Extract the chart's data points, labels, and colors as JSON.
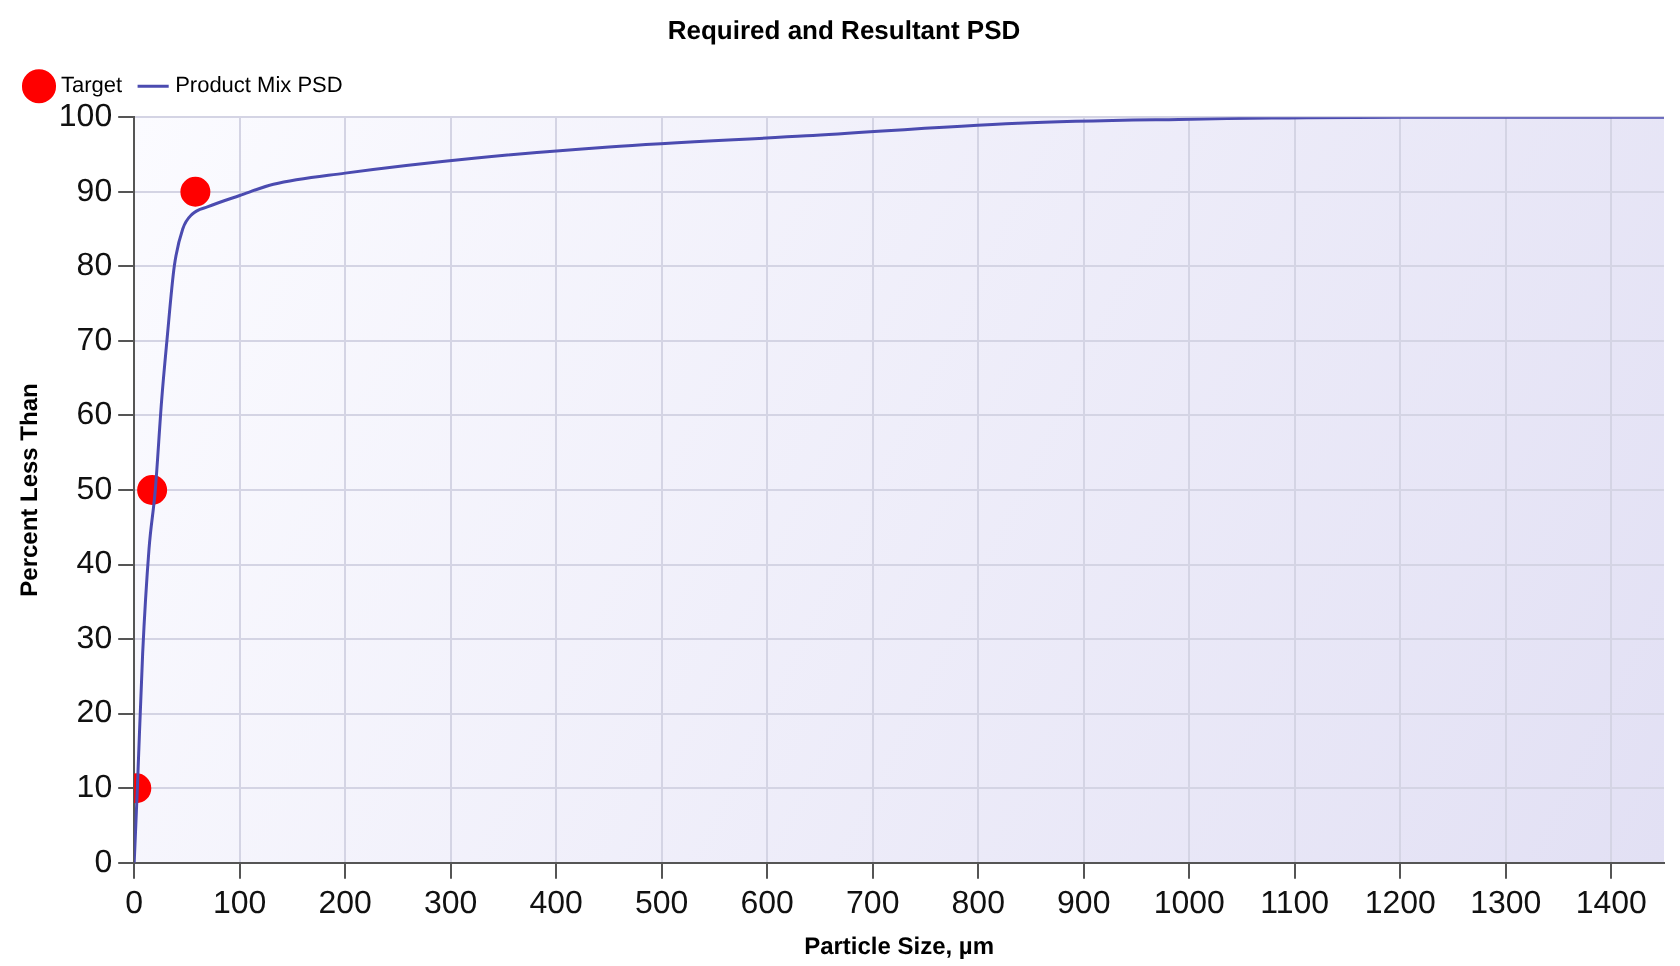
{
  "chart_data": {
    "type": "line",
    "title": "Required and Resultant PSD",
    "xlabel": "Particle Size, µm",
    "ylabel": "Percent Less Than",
    "series": [
      {
        "name": "Target",
        "type": "scatter",
        "color": "#ff0000",
        "marker": "circle",
        "x": [
          2,
          17,
          58
        ],
        "values": [
          10,
          50,
          90
        ]
      },
      {
        "name": "Product Mix PSD",
        "type": "line",
        "color": "#4b4bb0",
        "marker": "none",
        "x": [
          0,
          3,
          8,
          14,
          20,
          26,
          31,
          38,
          46,
          55,
          70,
          100,
          132,
          200,
          322,
          450,
          637,
          838,
          990,
          1200,
          1450
        ],
        "values": [
          0,
          10,
          28,
          42,
          50,
          62,
          70,
          80,
          85,
          87,
          88,
          89.5,
          91,
          92.5,
          94.5,
          96,
          97.5,
          99.2,
          99.7,
          100,
          100
        ]
      }
    ],
    "xlim": [
      0,
      1450
    ],
    "xticks": [
      0,
      100,
      200,
      300,
      400,
      500,
      600,
      700,
      800,
      900,
      1000,
      1100,
      1200,
      1300,
      1400
    ],
    "ylim": [
      0,
      100
    ],
    "yticks": [
      0,
      10,
      20,
      30,
      40,
      50,
      60,
      70,
      80,
      90,
      100
    ],
    "grid": true,
    "legend": "top left"
  }
}
